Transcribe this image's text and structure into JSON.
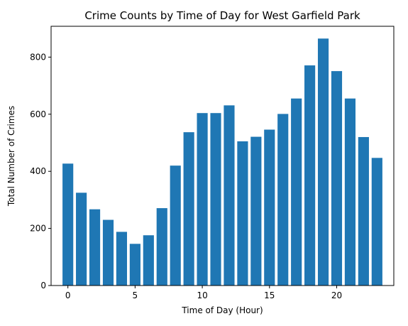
{
  "chart_data": {
    "type": "bar",
    "title": "Crime Counts by Time of Day for West Garfield Park",
    "xlabel": "Time of Day (Hour)",
    "ylabel": "Total Number of Crimes",
    "x": [
      0,
      1,
      2,
      3,
      4,
      5,
      6,
      7,
      8,
      9,
      10,
      11,
      12,
      13,
      14,
      15,
      16,
      17,
      18,
      19,
      20,
      21,
      22,
      23
    ],
    "values": [
      427,
      325,
      267,
      230,
      188,
      146,
      176,
      271,
      420,
      537,
      604,
      604,
      631,
      505,
      521,
      546,
      601,
      655,
      771,
      865,
      751,
      655,
      520,
      447
    ],
    "xlim": [
      -1.25,
      24.25
    ],
    "ylim": [
      0,
      908
    ],
    "xticks": [
      0,
      5,
      10,
      15,
      20
    ],
    "yticks": [
      0,
      200,
      400,
      600,
      800
    ],
    "bar_color": "#1f77b4",
    "grid": false,
    "legend": "none"
  }
}
